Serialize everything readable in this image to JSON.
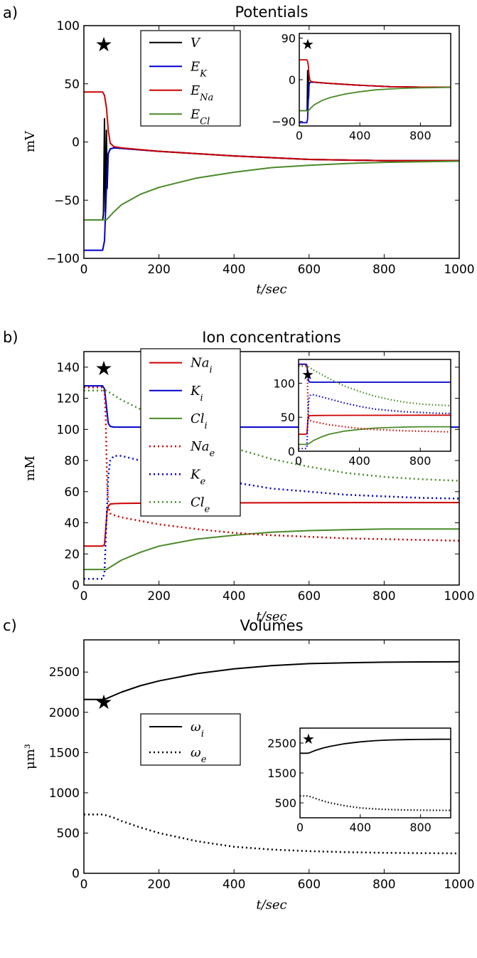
{
  "chart_data": [
    {
      "panel_label": "a)",
      "type": "line",
      "title": "Potentials",
      "xlabel": "t/sec",
      "ylabel": "mV",
      "xlim": [
        0,
        1000
      ],
      "ylim": [
        -100,
        100
      ],
      "xticks": [
        "0",
        "200",
        "400",
        "600",
        "800",
        "1000"
      ],
      "yticks": [
        "−100",
        "−50",
        "0",
        "50",
        "100"
      ],
      "legend": "upper-center",
      "marker": "★",
      "series": [
        {
          "name": "V",
          "color": "#000000",
          "style": "solid",
          "x": [
            0,
            50,
            52,
            55,
            57,
            60,
            62,
            65,
            70,
            80,
            100,
            200,
            400,
            600,
            800,
            1000
          ],
          "y": [
            -67,
            -67,
            -62,
            20,
            -60,
            10,
            -40,
            -10,
            -6,
            -5,
            -5.5,
            -8,
            -12,
            -15,
            -16,
            -16
          ]
        },
        {
          "name": "E_K",
          "color": "#0000cc",
          "style": "solid",
          "x": [
            0,
            50,
            55,
            60,
            65,
            70,
            80,
            100,
            200,
            400,
            600,
            800,
            1000
          ],
          "y": [
            -93,
            -93,
            -85,
            -40,
            -10,
            -6,
            -5,
            -5.5,
            -8,
            -12,
            -15,
            -16,
            -16
          ]
        },
        {
          "name": "E_Na",
          "color": "#cc0000",
          "style": "solid",
          "x": [
            0,
            50,
            55,
            60,
            65,
            70,
            80,
            100,
            200,
            400,
            600,
            800,
            1000
          ],
          "y": [
            43,
            43,
            40,
            30,
            10,
            -1,
            -4,
            -5,
            -8,
            -12,
            -15,
            -16,
            -16
          ]
        },
        {
          "name": "E_Cl",
          "color": "#4a8a28",
          "style": "solid",
          "x": [
            0,
            50,
            60,
            80,
            100,
            150,
            200,
            300,
            400,
            500,
            600,
            700,
            800,
            900,
            1000
          ],
          "y": [
            -67,
            -67,
            -67,
            -60,
            -54,
            -45,
            -39,
            -31,
            -26,
            -22,
            -20,
            -18.5,
            -17.5,
            -17,
            -16.5
          ]
        }
      ],
      "inset": {
        "xlim": [
          0,
          1000
        ],
        "ylim": [
          -100,
          100
        ],
        "xticks": [
          "0",
          "400",
          "800"
        ],
        "yticks": [
          "−90",
          "0",
          "90"
        ],
        "marker": "★"
      }
    },
    {
      "panel_label": "b)",
      "type": "line",
      "title": "Ion concentrations",
      "xlabel": "t/sec",
      "ylabel": "mM",
      "xlim": [
        0,
        1000
      ],
      "ylim": [
        0,
        150
      ],
      "xticks": [
        "0",
        "200",
        "400",
        "600",
        "800",
        "1000"
      ],
      "yticks": [
        "0",
        "20",
        "40",
        "60",
        "80",
        "100",
        "120",
        "140"
      ],
      "legend": "upper-left",
      "marker": "★",
      "series": [
        {
          "name": "Na_i",
          "color": "#cc0000",
          "style": "solid",
          "x": [
            0,
            50,
            55,
            58,
            62,
            66,
            70,
            80,
            100,
            200,
            400,
            600,
            800,
            1000
          ],
          "y": [
            25,
            25,
            26,
            35,
            48,
            51,
            52,
            52.3,
            52.5,
            52.7,
            52.8,
            52.9,
            53,
            53
          ]
        },
        {
          "name": "K_i",
          "color": "#0000cc",
          "style": "solid",
          "x": [
            0,
            50,
            55,
            60,
            65,
            70,
            80,
            100,
            200,
            400,
            600,
            800,
            1000
          ],
          "y": [
            128,
            128,
            126,
            115,
            104,
            102,
            101.5,
            101.5,
            101.5,
            101.5,
            101.5,
            101.5,
            101.5
          ]
        },
        {
          "name": "Cl_i",
          "color": "#4a8a28",
          "style": "solid",
          "x": [
            0,
            50,
            60,
            80,
            100,
            150,
            200,
            300,
            400,
            500,
            600,
            700,
            800,
            900,
            1000
          ],
          "y": [
            10,
            10,
            10,
            13,
            16,
            21,
            25,
            29.5,
            32,
            34,
            35,
            35.6,
            36,
            36,
            36
          ]
        },
        {
          "name": "Na_e",
          "color": "#cc0000",
          "style": "dotted",
          "x": [
            0,
            50,
            55,
            58,
            62,
            66,
            70,
            80,
            100,
            200,
            300,
            400,
            500,
            600,
            700,
            800,
            900,
            1000
          ],
          "y": [
            127,
            127,
            124,
            110,
            65,
            50,
            46,
            45,
            43.5,
            39,
            36,
            33.5,
            32,
            31,
            30,
            29.5,
            29,
            28.5
          ]
        },
        {
          "name": "K_e",
          "color": "#0000cc",
          "style": "dotted",
          "x": [
            0,
            50,
            55,
            60,
            65,
            70,
            80,
            100,
            200,
            300,
            400,
            500,
            600,
            700,
            800,
            900,
            1000
          ],
          "y": [
            4,
            4,
            8,
            40,
            70,
            80,
            83,
            83,
            77,
            71,
            66,
            62,
            60,
            58,
            57,
            56,
            55.5
          ]
        },
        {
          "name": "Cl_e",
          "color": "#4a8a28",
          "style": "dotted",
          "x": [
            0,
            50,
            60,
            80,
            100,
            150,
            200,
            300,
            400,
            500,
            600,
            700,
            800,
            900,
            1000
          ],
          "y": [
            125,
            125,
            125,
            122,
            119,
            113,
            107,
            96,
            88,
            81,
            76,
            72,
            69.5,
            68,
            67
          ]
        }
      ],
      "inset": {
        "xlim": [
          0,
          1000
        ],
        "ylim": [
          0,
          135
        ],
        "xticks": [
          "0",
          "400",
          "800"
        ],
        "yticks": [
          "0",
          "50",
          "100"
        ],
        "marker": "★"
      }
    },
    {
      "panel_label": "c)",
      "type": "line",
      "title": "Volumes",
      "xlabel": "t/sec",
      "ylabel": "μm³",
      "xlim": [
        0,
        1000
      ],
      "ylim": [
        0,
        2900
      ],
      "xticks": [
        "0",
        "200",
        "400",
        "600",
        "800",
        "1000"
      ],
      "yticks": [
        "0",
        "500",
        "1000",
        "1500",
        "2000",
        "2500"
      ],
      "legend": "center-left",
      "marker": "★",
      "series": [
        {
          "name": "ω_i",
          "color": "#000000",
          "style": "solid",
          "x": [
            0,
            50,
            60,
            80,
            100,
            150,
            200,
            300,
            400,
            500,
            600,
            700,
            800,
            900,
            1000
          ],
          "y": [
            2160,
            2160,
            2170,
            2210,
            2250,
            2330,
            2390,
            2480,
            2540,
            2580,
            2605,
            2615,
            2622,
            2626,
            2628
          ]
        },
        {
          "name": "ω_e",
          "color": "#000000",
          "style": "dotted",
          "x": [
            0,
            50,
            60,
            80,
            100,
            150,
            200,
            300,
            400,
            500,
            600,
            700,
            800,
            900,
            1000
          ],
          "y": [
            730,
            730,
            720,
            690,
            650,
            570,
            500,
            400,
            330,
            295,
            275,
            263,
            255,
            250,
            248
          ]
        }
      ],
      "inset": {
        "xlim": [
          0,
          1000
        ],
        "ylim": [
          0,
          3000
        ],
        "xticks": [
          "0",
          "400",
          "800"
        ],
        "yticks": [
          "500",
          "1500",
          "2500"
        ],
        "marker": "★"
      }
    }
  ]
}
